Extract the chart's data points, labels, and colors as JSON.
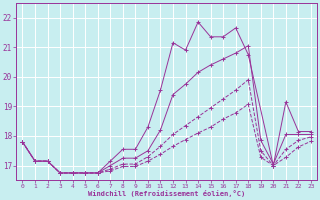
{
  "background_color": "#c8eef0",
  "grid_color": "#ffffff",
  "line_color": "#993399",
  "xlabel": "Windchill (Refroidissement éolien,°C)",
  "xlim": [
    -0.5,
    23.5
  ],
  "ylim": [
    16.5,
    22.5
  ],
  "yticks": [
    17,
    18,
    19,
    20,
    21,
    22
  ],
  "xticks": [
    0,
    1,
    2,
    3,
    4,
    5,
    6,
    7,
    8,
    9,
    10,
    11,
    12,
    13,
    14,
    15,
    16,
    17,
    18,
    19,
    20,
    21,
    22,
    23
  ],
  "series": [
    {
      "x": [
        0,
        1,
        2,
        3,
        4,
        5,
        6,
        7,
        8,
        9,
        10,
        11,
        12,
        13,
        14,
        15,
        16,
        17,
        18,
        20,
        21,
        22,
        23
      ],
      "y": [
        17.8,
        17.15,
        17.15,
        16.75,
        16.75,
        16.75,
        16.75,
        17.15,
        17.55,
        17.55,
        18.3,
        19.55,
        21.15,
        20.9,
        21.85,
        21.35,
        21.35,
        21.65,
        20.75,
        17.0,
        19.15,
        18.15,
        18.15
      ],
      "style": "-",
      "marker": "+"
    },
    {
      "x": [
        0,
        1,
        2,
        3,
        4,
        5,
        6,
        7,
        8,
        9,
        10,
        11,
        12,
        13,
        14,
        15,
        16,
        17,
        18,
        19,
        20,
        21,
        22,
        23
      ],
      "y": [
        17.8,
        17.15,
        17.15,
        16.75,
        16.75,
        16.75,
        16.75,
        17.0,
        17.25,
        17.25,
        17.5,
        18.2,
        19.4,
        19.75,
        20.15,
        20.4,
        20.6,
        20.8,
        21.05,
        17.85,
        17.05,
        18.05,
        18.05,
        18.05
      ],
      "style": "-",
      "marker": "+"
    },
    {
      "x": [
        0,
        1,
        2,
        3,
        4,
        5,
        6,
        7,
        8,
        9,
        10,
        11,
        12,
        13,
        14,
        15,
        16,
        17,
        18,
        19,
        20,
        21,
        22,
        23
      ],
      "y": [
        17.8,
        17.15,
        17.15,
        16.75,
        16.75,
        16.75,
        16.75,
        16.88,
        17.05,
        17.05,
        17.3,
        17.65,
        18.05,
        18.35,
        18.65,
        18.95,
        19.25,
        19.55,
        19.9,
        17.5,
        17.0,
        17.55,
        17.85,
        17.97
      ],
      "style": "-",
      "marker": "+"
    },
    {
      "x": [
        0,
        1,
        2,
        3,
        4,
        5,
        6,
        7,
        8,
        9,
        10,
        11,
        12,
        13,
        14,
        15,
        16,
        17,
        18,
        19,
        20,
        21,
        22,
        23
      ],
      "y": [
        17.8,
        17.15,
        17.15,
        16.75,
        16.75,
        16.75,
        16.75,
        16.82,
        16.97,
        16.97,
        17.15,
        17.38,
        17.65,
        17.88,
        18.1,
        18.3,
        18.57,
        18.78,
        19.07,
        17.28,
        17.0,
        17.28,
        17.63,
        17.82
      ],
      "style": "-",
      "marker": "+"
    }
  ]
}
